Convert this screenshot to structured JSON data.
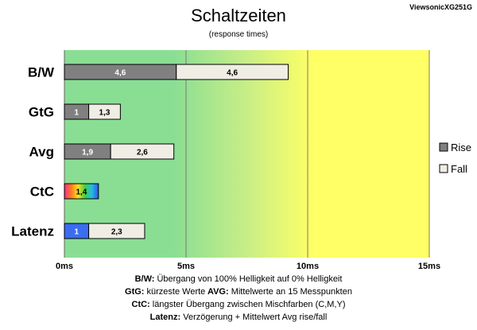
{
  "header": {
    "title": "Schaltzeiten",
    "subtitle": "(response times)",
    "monitor": "ViewsonicXG251G"
  },
  "chart_data": {
    "type": "bar",
    "orientation": "horizontal",
    "stacked": true,
    "categories": [
      "B/W",
      "GtG",
      "Avg",
      "CtC",
      "Latenz"
    ],
    "series": [
      {
        "name": "Rise",
        "values": [
          4.6,
          1,
          1.9,
          1.4,
          1
        ],
        "labels": [
          "4,6",
          "1",
          "1,9",
          "1,4",
          "1"
        ]
      },
      {
        "name": "Fall",
        "values": [
          4.6,
          1.3,
          2.6,
          null,
          2.3
        ],
        "labels": [
          "4,6",
          "1,3",
          "2,6",
          "",
          "2,3"
        ]
      }
    ],
    "xlim": [
      0,
      15
    ],
    "x_ticks": [
      {
        "value": 0,
        "label": "0ms"
      },
      {
        "value": 5,
        "label": "5ms"
      },
      {
        "value": 10,
        "label": "10ms"
      },
      {
        "value": 15,
        "label": "15ms"
      }
    ],
    "legend_position": "right",
    "grid": "vertical",
    "colors": {
      "rise": "#808080",
      "fall": "#f0ede4",
      "gtg_rise": "#808080",
      "latenz_rise": "#3a6df0",
      "background_green": "#8ade94",
      "background_yellow": "#ffff66"
    }
  },
  "notes": [
    {
      "term": "B/W",
      "text": "Übergang von 100% Helligkeit auf 0% Helligkeit"
    },
    {
      "term": "GtG",
      "text": "kürzeste Werte",
      "term2": "AVG",
      "text2": "Mittelwerte an 15 Messpunkten"
    },
    {
      "term": "CtC",
      "text": "längster Übergang zwischen Mischfarben (C,M,Y)"
    },
    {
      "term": "Latenz",
      "text": "Verzögerung + Mittelwert Avg rise/fall"
    }
  ]
}
